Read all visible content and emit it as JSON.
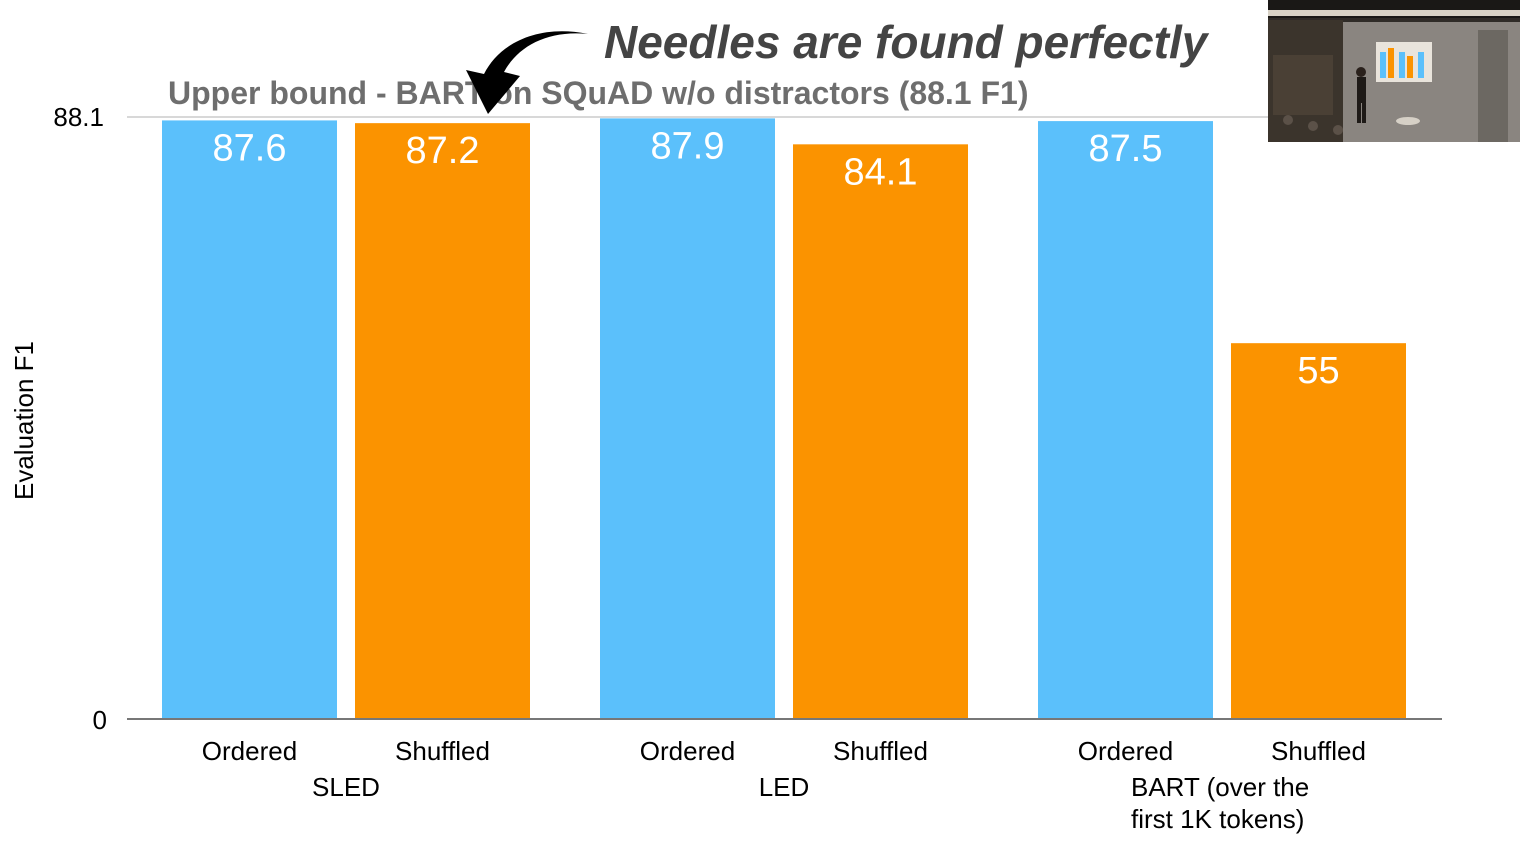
{
  "headline": "Needles are found perfectly",
  "chart_data": {
    "type": "bar",
    "title": "",
    "xlabel": "",
    "ylabel": "Evaluation F1",
    "ylim": [
      0,
      88.1
    ],
    "yticks": [
      "0",
      "88.1"
    ],
    "grid": false,
    "groups": [
      {
        "name": "SLED",
        "label_lines": [
          "SLED"
        ],
        "bars": [
          {
            "category": "Ordered",
            "value": 87.6,
            "label": "87.6"
          },
          {
            "category": "Shuffled",
            "value": 87.2,
            "label": "87.2"
          }
        ]
      },
      {
        "name": "LED",
        "label_lines": [
          "LED"
        ],
        "bars": [
          {
            "category": "Ordered",
            "value": 87.9,
            "label": "87.9"
          },
          {
            "category": "Shuffled",
            "value": 84.1,
            "label": "84.1"
          }
        ]
      },
      {
        "name": "BART (over the first 1K tokens)",
        "label_lines": [
          "BART (over the",
          "first 1K tokens)"
        ],
        "bars": [
          {
            "category": "Ordered",
            "value": 87.5,
            "label": "87.5"
          },
          {
            "category": "Shuffled",
            "value": 55,
            "label": "55"
          }
        ]
      }
    ],
    "reference_line": {
      "value": 88.1,
      "label": "Upper bound - BART on SQuAD w/o distractors (88.1 F1)"
    },
    "colors": {
      "Ordered": "#5bc0fb",
      "Shuffled": "#fb9300"
    }
  },
  "inset": {
    "icon": "speaker-video-icon"
  }
}
